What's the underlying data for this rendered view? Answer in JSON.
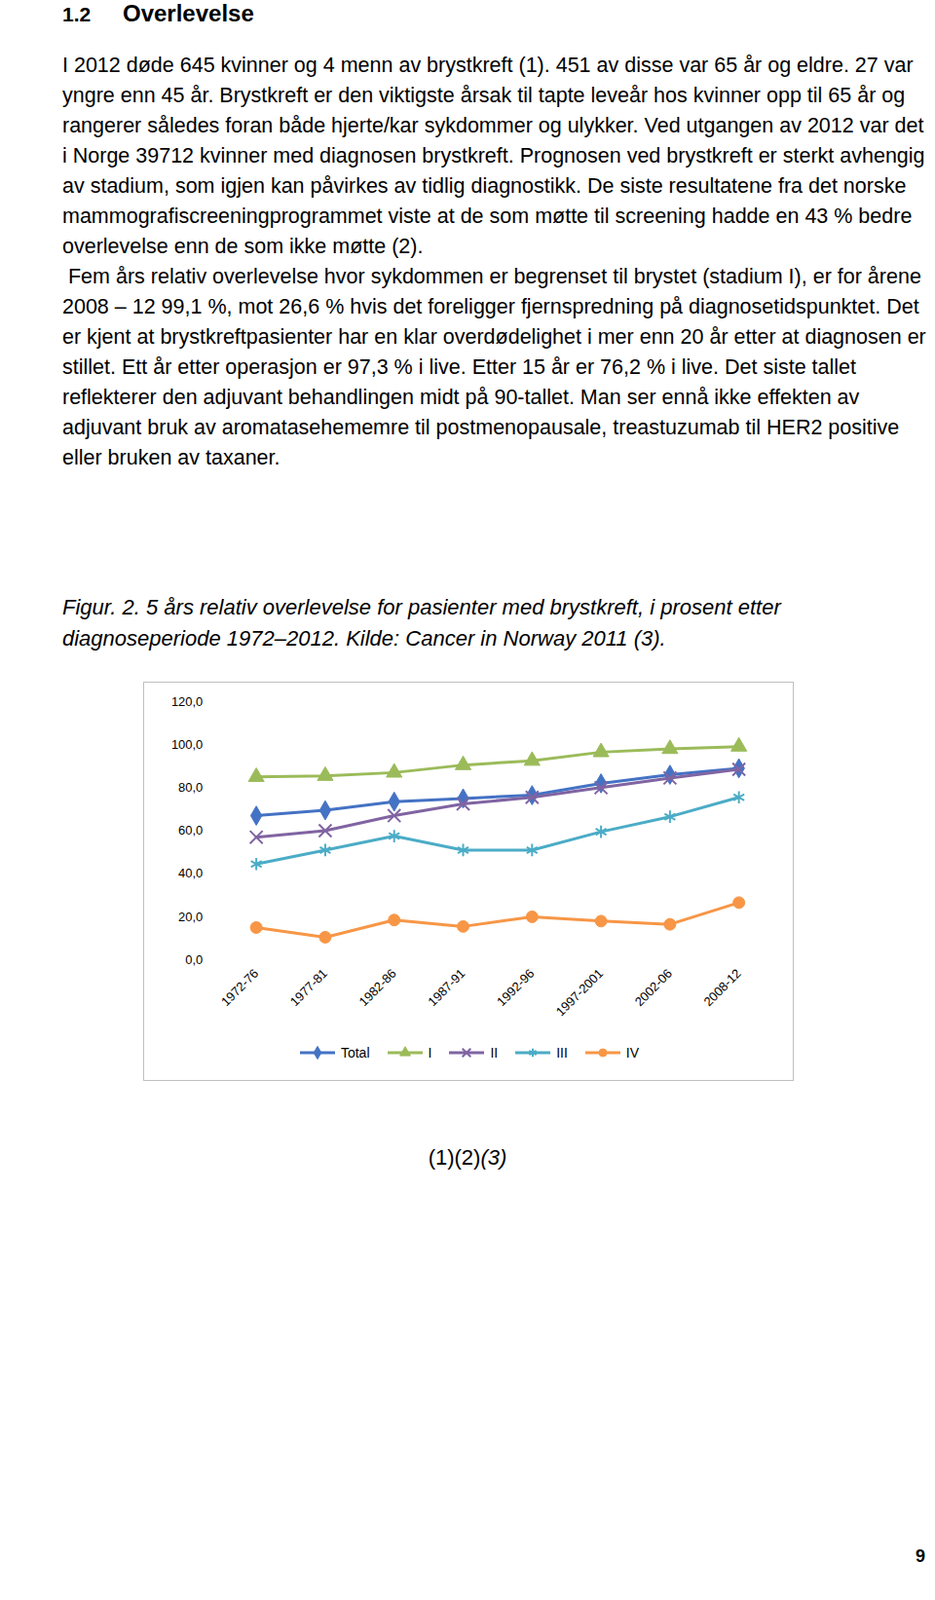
{
  "heading": {
    "number": "1.2",
    "title": "Overlevelse"
  },
  "paragraphs": [
    "I 2012 døde 645 kvinner og 4 menn av brystkreft (1). 451 av disse var 65 år og eldre. 27 var yngre enn 45 år. Brystkreft er den viktigste årsak til tapte leveår hos kvinner opp til 65 år og rangerer således foran både hjerte/kar sykdommer og ulykker. Ved utgangen av 2012 var det i Norge 39712 kvinner med diagnosen brystkreft. Prognosen ved brystkreft er sterkt avhengig av stadium, som igjen kan påvirkes av tidlig diagnostikk. De siste resultatene fra det norske mammografiscreeningprogrammet viste at de som møtte til screening hadde en 43 % bedre overlevelse enn de som ikke møtte (2).",
    " Fem års relativ overlevelse hvor sykdommen er begrenset til brystet (stadium I), er for årene 2008 – 12 99,1 %, mot 26,6 % hvis det foreligger fjernspredning på diagnosetidspunktet. Det er kjent at brystkreftpasienter har en klar overdødelighet i mer enn 20 år etter at diagnosen er stillet. Ett år etter operasjon er 97,3 % i live. Etter 15 år er 76,2 % i live. Det siste tallet reflekterer den adjuvant behandlingen midt på 90-tallet. Man ser ennå ikke effekten av adjuvant bruk av aromatasehememre til postmenopausale, treastuzumab til HER2 positive eller bruken av taxaner."
  ],
  "figure_caption": "Figur. 2. 5 års relativ overlevelse for pasienter med brystkreft, i prosent etter diagnoseperiode 1972–2012. Kilde: Cancer in Norway 2011 (3).",
  "chart_data": {
    "type": "line",
    "categories": [
      "1972-76",
      "1977-81",
      "1982-86",
      "1987-91",
      "1992-96",
      "1997-2001",
      "2002-06",
      "2008-12"
    ],
    "series": [
      {
        "name": "Total",
        "color": "#4472c4",
        "marker": "diamond",
        "values": [
          67,
          69.5,
          73.5,
          75,
          76.5,
          82,
          86,
          89
        ]
      },
      {
        "name": "I",
        "color": "#9bbb59",
        "marker": "triangle",
        "values": [
          85,
          85.5,
          87,
          90.5,
          92.5,
          96.5,
          98,
          99.1
        ]
      },
      {
        "name": "II",
        "color": "#8064a2",
        "marker": "times",
        "values": [
          57,
          60,
          67,
          72.5,
          75.5,
          80,
          84.5,
          88.5
        ]
      },
      {
        "name": "III",
        "color": "#4bacc6",
        "marker": "asterisk",
        "values": [
          44.5,
          51,
          57.5,
          51,
          51,
          59.5,
          66.5,
          75.5
        ]
      },
      {
        "name": "IV",
        "color": "#f79646",
        "marker": "circle",
        "values": [
          15,
          10.5,
          18.5,
          15.5,
          20,
          18,
          16.5,
          26.6
        ]
      }
    ],
    "ylim": [
      0,
      120
    ],
    "yticks": [
      {
        "value": 0,
        "label": "0,0"
      },
      {
        "value": 20,
        "label": "20,0"
      },
      {
        "value": 40,
        "label": "40,0"
      },
      {
        "value": 60,
        "label": "60,0"
      },
      {
        "value": 80,
        "label": "80,0"
      },
      {
        "value": 100,
        "label": "100,0"
      },
      {
        "value": 120,
        "label": "120,0"
      }
    ],
    "grid": false,
    "legend": "bottom"
  },
  "references": [
    "(1)",
    "(2)",
    "(3)"
  ],
  "page_number": "9"
}
